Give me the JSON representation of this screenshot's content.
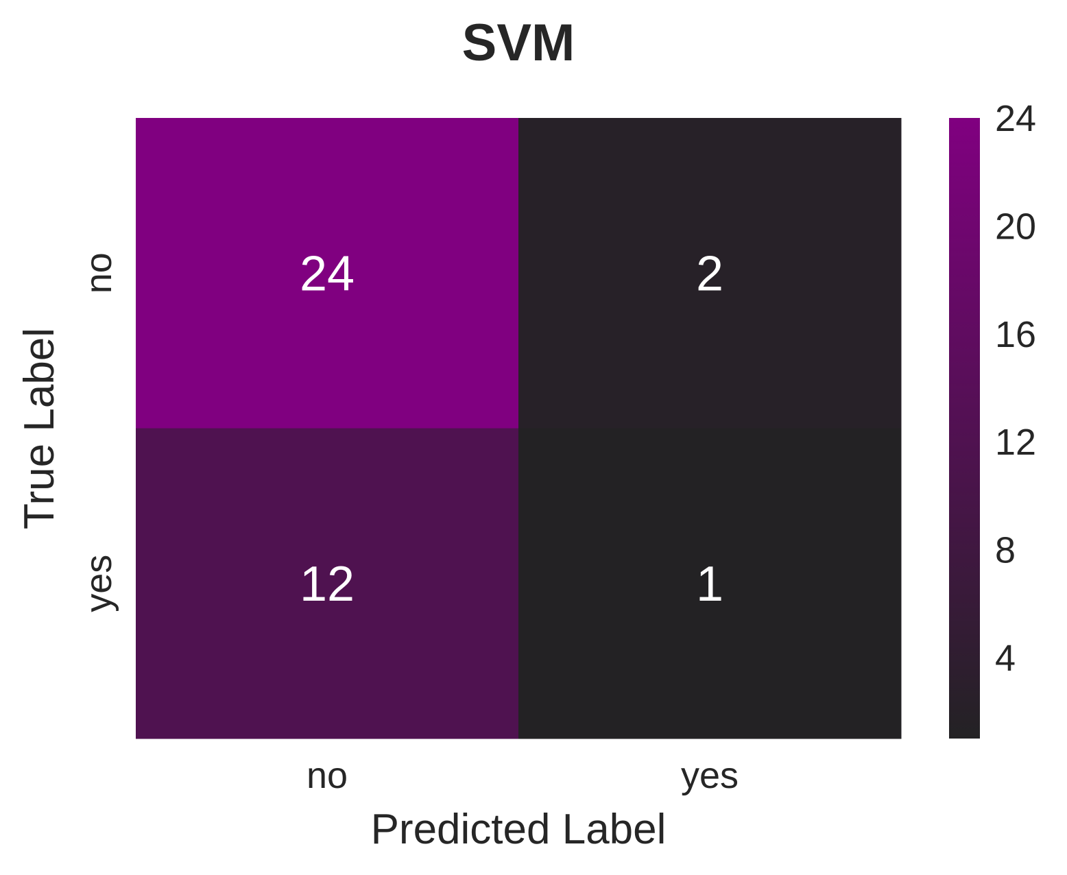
{
  "chart_data": {
    "type": "heatmap",
    "title": "SVM",
    "xlabel": "Predicted Label",
    "ylabel": "True Label",
    "x_categories": [
      "no",
      "yes"
    ],
    "y_categories": [
      "no",
      "yes"
    ],
    "values": [
      [
        24,
        2
      ],
      [
        12,
        1
      ]
    ],
    "colorbar": {
      "min": 1,
      "max": 24,
      "ticks": [
        4,
        8,
        12,
        16,
        20,
        24
      ],
      "color_low": "#232224",
      "color_high": "#800080"
    }
  }
}
